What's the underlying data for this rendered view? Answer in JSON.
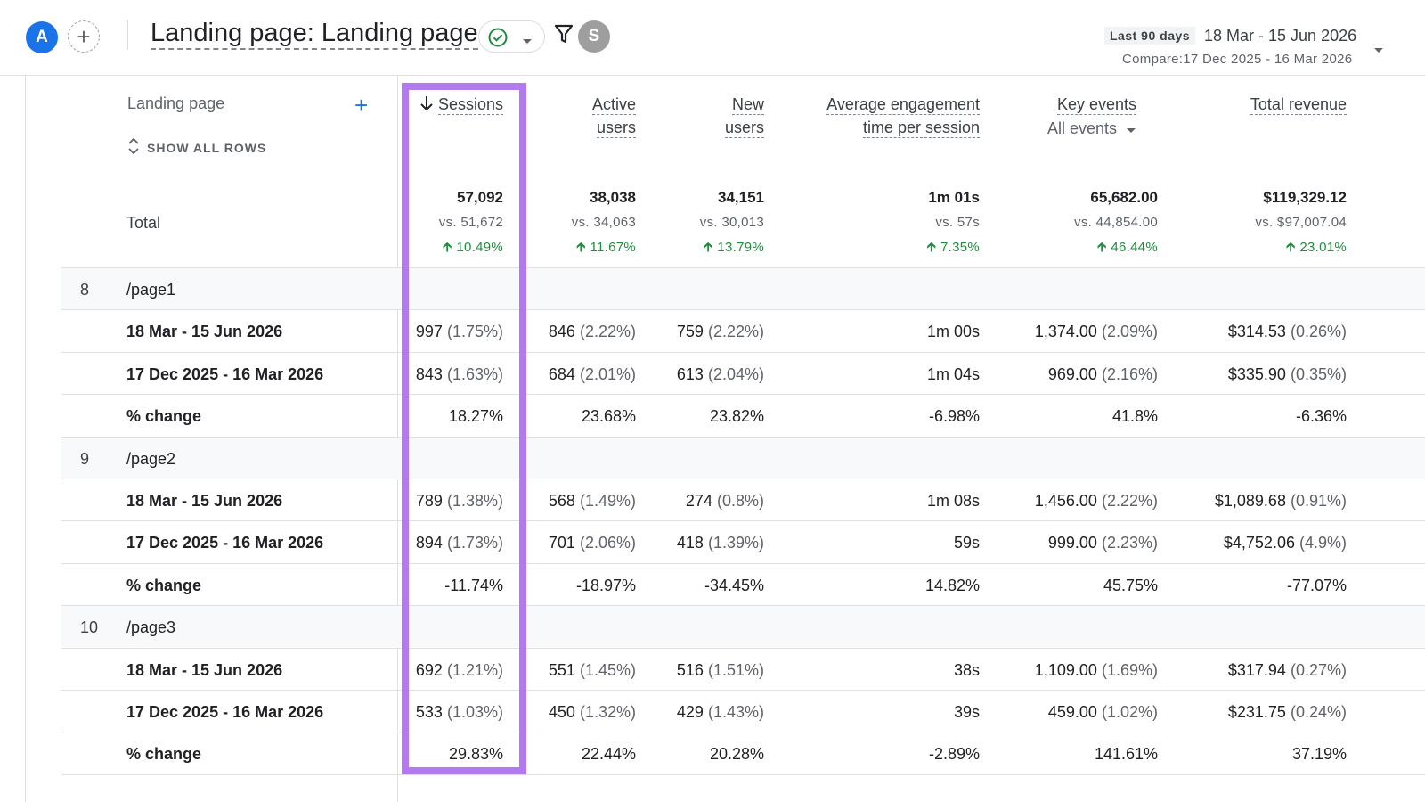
{
  "header": {
    "avatar_letter": "A",
    "add_comparison_symbol": "+",
    "title": "Landing page: Landing page",
    "filter_icon": "filter-icon",
    "secondary_avatar_letter": "S",
    "date_preset": "Last 90 days",
    "date_range": "18 Mar - 15 Jun 2026",
    "compare_range": "Compare:17 Dec 2025 - 16 Mar 2026"
  },
  "table": {
    "dimension_header": "Landing page",
    "show_all_rows": "SHOW ALL ROWS",
    "columns": [
      {
        "line1": "Sessions",
        "line2": ""
      },
      {
        "line1": "Active",
        "line2": "users"
      },
      {
        "line1": "New",
        "line2": "users"
      },
      {
        "line1": "Average engagement",
        "line2": "time per session"
      },
      {
        "line1": "Key events",
        "line2": ""
      },
      {
        "line1": "Total revenue",
        "line2": ""
      }
    ],
    "key_events_filter": "All events",
    "total_label": "Total",
    "totals": [
      {
        "value": "57,092",
        "vs": "vs. 51,672",
        "change": "10.49%"
      },
      {
        "value": "38,038",
        "vs": "vs. 34,063",
        "change": "11.67%"
      },
      {
        "value": "34,151",
        "vs": "vs. 30,013",
        "change": "13.79%"
      },
      {
        "value": "1m 01s",
        "vs": "vs. 57s",
        "change": "7.35%"
      },
      {
        "value": "65,682.00",
        "vs": "vs. 44,854.00",
        "change": "46.44%"
      },
      {
        "value": "$119,329.12",
        "vs": "vs. $97,007.04",
        "change": "23.01%"
      }
    ],
    "groups": [
      {
        "index": "8",
        "name": "/page1",
        "rows": [
          {
            "label": "18 Mar - 15 Jun 2026",
            "cells": [
              [
                "997",
                "(1.75%)"
              ],
              [
                "846",
                "(2.22%)"
              ],
              [
                "759",
                "(2.22%)"
              ],
              [
                "1m 00s",
                ""
              ],
              [
                "1,374.00",
                "(2.09%)"
              ],
              [
                "$314.53",
                "(0.26%)"
              ]
            ]
          },
          {
            "label": "17 Dec 2025 - 16 Mar 2026",
            "cells": [
              [
                "843",
                "(1.63%)"
              ],
              [
                "684",
                "(2.01%)"
              ],
              [
                "613",
                "(2.04%)"
              ],
              [
                "1m 04s",
                ""
              ],
              [
                "969.00",
                "(2.16%)"
              ],
              [
                "$335.90",
                "(0.35%)"
              ]
            ]
          },
          {
            "label": "% change",
            "cells": [
              [
                "18.27%",
                ""
              ],
              [
                "23.68%",
                ""
              ],
              [
                "23.82%",
                ""
              ],
              [
                "-6.98%",
                ""
              ],
              [
                "41.8%",
                ""
              ],
              [
                "-6.36%",
                ""
              ]
            ]
          }
        ]
      },
      {
        "index": "9",
        "name": "/page2",
        "rows": [
          {
            "label": "18 Mar - 15 Jun 2026",
            "cells": [
              [
                "789",
                "(1.38%)"
              ],
              [
                "568",
                "(1.49%)"
              ],
              [
                "274",
                "(0.8%)"
              ],
              [
                "1m 08s",
                ""
              ],
              [
                "1,456.00",
                "(2.22%)"
              ],
              [
                "$1,089.68",
                "(0.91%)"
              ]
            ]
          },
          {
            "label": "17 Dec 2025 - 16 Mar 2026",
            "cells": [
              [
                "894",
                "(1.73%)"
              ],
              [
                "701",
                "(2.06%)"
              ],
              [
                "418",
                "(1.39%)"
              ],
              [
                "59s",
                ""
              ],
              [
                "999.00",
                "(2.23%)"
              ],
              [
                "$4,752.06",
                "(4.9%)"
              ]
            ]
          },
          {
            "label": "% change",
            "cells": [
              [
                "-11.74%",
                ""
              ],
              [
                "-18.97%",
                ""
              ],
              [
                "-34.45%",
                ""
              ],
              [
                "14.82%",
                ""
              ],
              [
                "45.75%",
                ""
              ],
              [
                "-77.07%",
                ""
              ]
            ]
          }
        ]
      },
      {
        "index": "10",
        "name": "/page3",
        "rows": [
          {
            "label": "18 Mar - 15 Jun 2026",
            "cells": [
              [
                "692",
                "(1.21%)"
              ],
              [
                "551",
                "(1.45%)"
              ],
              [
                "516",
                "(1.51%)"
              ],
              [
                "38s",
                ""
              ],
              [
                "1,109.00",
                "(1.69%)"
              ],
              [
                "$317.94",
                "(0.27%)"
              ]
            ]
          },
          {
            "label": "17 Dec 2025 - 16 Mar 2026",
            "cells": [
              [
                "533",
                "(1.03%)"
              ],
              [
                "450",
                "(1.32%)"
              ],
              [
                "429",
                "(1.43%)"
              ],
              [
                "39s",
                ""
              ],
              [
                "459.00",
                "(1.02%)"
              ],
              [
                "$231.75",
                "(0.24%)"
              ]
            ]
          },
          {
            "label": "% change",
            "cells": [
              [
                "29.83%",
                ""
              ],
              [
                "22.44%",
                ""
              ],
              [
                "20.28%",
                ""
              ],
              [
                "-2.89%",
                ""
              ],
              [
                "141.61%",
                ""
              ],
              [
                "37.19%",
                ""
              ]
            ]
          }
        ]
      }
    ]
  },
  "colors": {
    "accent": "#1a73e8",
    "positive": "#1e8e3e",
    "highlight": "#b37af0",
    "group_row_bg": "#f8f9fa"
  }
}
